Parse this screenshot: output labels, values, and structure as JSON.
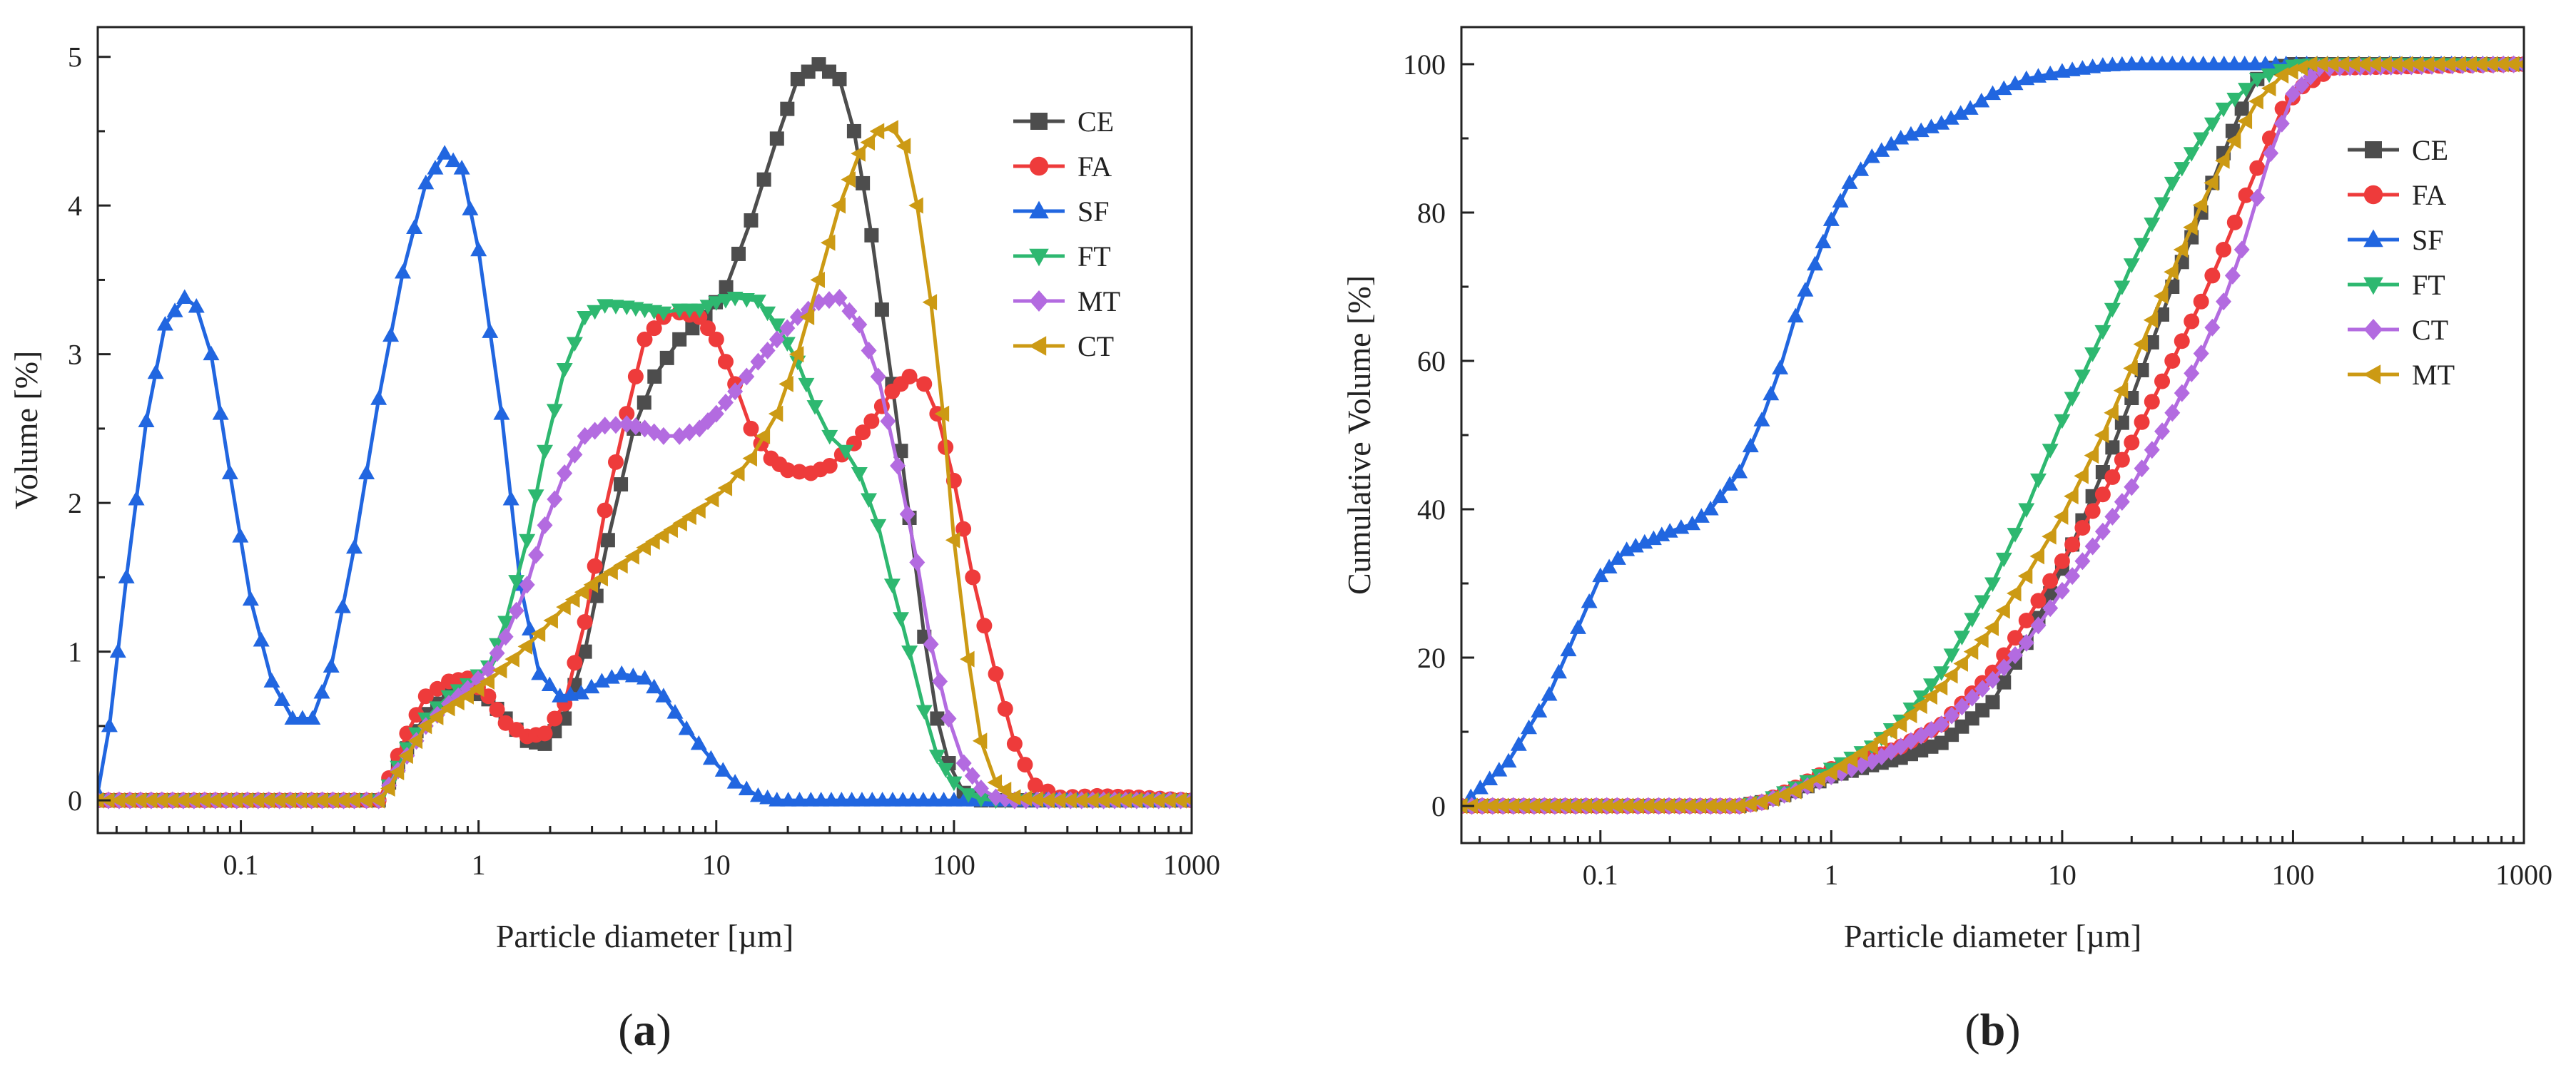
{
  "chart_data": [
    {
      "panel_label": {
        "open": "(",
        "letter": "a",
        "close": ")"
      },
      "type": "line",
      "xscale": "log",
      "xlim": [
        0.025,
        1000
      ],
      "ylim": [
        -0.22,
        5.2
      ],
      "xlabel": "Particle diameter [µm]",
      "ylabel": "Volume [%]",
      "x_ticks": [
        0.1,
        1,
        10,
        100,
        1000
      ],
      "x_tick_labels": [
        "0.1",
        "1",
        "10",
        "100",
        "1000"
      ],
      "y_ticks": [
        0,
        1,
        2,
        3,
        4,
        5
      ],
      "y_tick_labels": [
        "0",
        "1",
        "2",
        "3",
        "4",
        "5"
      ],
      "legend_position": "top-right",
      "grid": false,
      "series": [
        {
          "name": "CE",
          "marker": "square",
          "color": "#4d4d4d",
          "x": [
            0.025,
            0.3,
            0.38,
            0.42,
            0.5,
            0.6,
            0.75,
            0.9,
            1.1,
            1.3,
            1.6,
            1.9,
            2.3,
            2.8,
            3.5,
            4.5,
            5.5,
            7,
            9,
            11,
            14,
            18,
            22,
            27,
            33,
            38,
            45,
            55,
            65,
            75,
            85,
            95,
            110,
            130,
            150,
            200,
            1000
          ],
          "y": [
            0,
            0,
            0,
            0.12,
            0.35,
            0.58,
            0.72,
            0.75,
            0.68,
            0.55,
            0.4,
            0.38,
            0.55,
            1.0,
            1.75,
            2.5,
            2.85,
            3.1,
            3.25,
            3.45,
            3.9,
            4.45,
            4.85,
            4.95,
            4.85,
            4.5,
            3.8,
            2.8,
            1.9,
            1.1,
            0.55,
            0.25,
            0.05,
            0,
            0,
            0,
            0
          ]
        },
        {
          "name": "FA",
          "marker": "circle",
          "color": "#ee3b3b",
          "x": [
            0.025,
            0.3,
            0.38,
            0.42,
            0.5,
            0.6,
            0.75,
            0.9,
            1.1,
            1.3,
            1.6,
            1.9,
            2.3,
            2.8,
            3.4,
            4.2,
            5,
            6,
            7,
            8.5,
            10,
            12,
            14,
            17,
            20,
            25,
            30,
            38,
            45,
            55,
            65,
            75,
            85,
            100,
            120,
            150,
            180,
            220,
            280,
            400,
            600,
            1000
          ],
          "y": [
            0,
            0,
            0,
            0.15,
            0.45,
            0.7,
            0.8,
            0.82,
            0.7,
            0.52,
            0.43,
            0.45,
            0.65,
            1.2,
            1.95,
            2.6,
            3.1,
            3.25,
            3.28,
            3.25,
            3.1,
            2.8,
            2.5,
            2.3,
            2.22,
            2.2,
            2.25,
            2.4,
            2.55,
            2.75,
            2.85,
            2.8,
            2.6,
            2.15,
            1.5,
            0.85,
            0.38,
            0.1,
            0.02,
            0.03,
            0.02,
            0
          ]
        },
        {
          "name": "SF",
          "marker": "triangle-up",
          "color": "#2166e0",
          "x": [
            0.025,
            0.028,
            0.033,
            0.04,
            0.048,
            0.058,
            0.065,
            0.075,
            0.09,
            0.11,
            0.135,
            0.165,
            0.2,
            0.24,
            0.3,
            0.38,
            0.48,
            0.6,
            0.72,
            0.85,
            1.0,
            1.25,
            1.5,
            1.8,
            2.2,
            2.7,
            3.3,
            4.0,
            5.0,
            6.0,
            7.5,
            9.5,
            12,
            15,
            18,
            25,
            50,
            100,
            200,
            1000
          ],
          "y": [
            0.05,
            0.5,
            1.5,
            2.55,
            3.2,
            3.38,
            3.32,
            3.0,
            2.2,
            1.35,
            0.8,
            0.55,
            0.55,
            0.9,
            1.7,
            2.7,
            3.55,
            4.15,
            4.35,
            4.25,
            3.7,
            2.6,
            1.45,
            0.85,
            0.7,
            0.72,
            0.8,
            0.85,
            0.82,
            0.7,
            0.48,
            0.28,
            0.12,
            0.03,
            0,
            0,
            0,
            0,
            0,
            0
          ]
        },
        {
          "name": "FT",
          "marker": "triangle-down",
          "color": "#2eb870",
          "x": [
            0.025,
            0.3,
            0.38,
            0.42,
            0.5,
            0.6,
            0.75,
            0.9,
            1.1,
            1.3,
            1.6,
            1.9,
            2.3,
            2.8,
            3.4,
            4.2,
            5,
            6,
            7,
            8.5,
            10,
            12,
            15,
            18,
            22,
            26,
            30,
            35,
            40,
            48,
            55,
            65,
            75,
            85,
            100,
            115,
            130,
            150,
            180,
            250,
            1000
          ],
          "y": [
            0,
            0,
            0,
            0.1,
            0.35,
            0.55,
            0.7,
            0.78,
            0.9,
            1.2,
            1.75,
            2.35,
            2.9,
            3.25,
            3.33,
            3.32,
            3.3,
            3.28,
            3.3,
            3.3,
            3.35,
            3.38,
            3.36,
            3.2,
            2.95,
            2.65,
            2.45,
            2.35,
            2.2,
            1.85,
            1.45,
            1.0,
            0.6,
            0.3,
            0.12,
            0.04,
            0.01,
            0,
            0,
            0,
            0
          ]
        },
        {
          "name": "MT",
          "marker": "diamond",
          "color": "#b36be0",
          "x": [
            0.025,
            0.3,
            0.38,
            0.42,
            0.5,
            0.6,
            0.75,
            0.9,
            1.1,
            1.3,
            1.6,
            1.9,
            2.3,
            2.8,
            3.4,
            4.2,
            5,
            6,
            7,
            8.5,
            10,
            12,
            15,
            18,
            22,
            27,
            33,
            40,
            48,
            58,
            70,
            80,
            95,
            110,
            130,
            150,
            180,
            250,
            1000
          ],
          "y": [
            0,
            0,
            0,
            0.1,
            0.3,
            0.5,
            0.65,
            0.75,
            0.88,
            1.1,
            1.45,
            1.85,
            2.2,
            2.45,
            2.52,
            2.53,
            2.5,
            2.45,
            2.45,
            2.5,
            2.6,
            2.75,
            2.95,
            3.1,
            3.25,
            3.35,
            3.38,
            3.2,
            2.85,
            2.25,
            1.6,
            1.05,
            0.55,
            0.25,
            0.08,
            0.02,
            0,
            0,
            0
          ]
        },
        {
          "name": "CT",
          "marker": "triangle-left",
          "color": "#cc9a14",
          "x": [
            0.025,
            0.3,
            0.38,
            0.42,
            0.5,
            0.6,
            0.75,
            0.9,
            1.1,
            1.4,
            1.8,
            2.3,
            3,
            4,
            5,
            6.5,
            8.5,
            11,
            14,
            18,
            22,
            27,
            33,
            40,
            48,
            55,
            62,
            70,
            80,
            90,
            100,
            115,
            130,
            150,
            180,
            250,
            1000
          ],
          "y": [
            0,
            0,
            0,
            0.08,
            0.3,
            0.5,
            0.62,
            0.7,
            0.8,
            0.95,
            1.12,
            1.3,
            1.45,
            1.58,
            1.7,
            1.82,
            1.95,
            2.1,
            2.3,
            2.6,
            3.0,
            3.5,
            4.0,
            4.35,
            4.5,
            4.52,
            4.4,
            4.0,
            3.35,
            2.6,
            1.75,
            0.95,
            0.4,
            0.12,
            0.02,
            0,
            0
          ]
        }
      ]
    },
    {
      "panel_label": {
        "open": "(",
        "letter": "b",
        "close": ")"
      },
      "type": "line",
      "xscale": "log",
      "xlim": [
        0.025,
        1000
      ],
      "ylim": [
        -5,
        105
      ],
      "xlabel": "Particle diameter [µm]",
      "ylabel": "Cumulative Volume [%]",
      "x_ticks": [
        0.1,
        1,
        10,
        100,
        1000
      ],
      "x_tick_labels": [
        "0.1",
        "1",
        "10",
        "100",
        "1000"
      ],
      "y_ticks": [
        0,
        20,
        40,
        60,
        80,
        100
      ],
      "y_tick_labels": [
        "0",
        "20",
        "40",
        "60",
        "80",
        "100"
      ],
      "legend_position": "right",
      "grid": false,
      "series": [
        {
          "name": "CE",
          "marker": "square",
          "color": "#4d4d4d",
          "x": [
            0.025,
            0.3,
            0.4,
            0.5,
            0.7,
            1.0,
            1.5,
            2.0,
            3.0,
            5.0,
            7.0,
            10,
            15,
            20,
            30,
            40,
            50,
            60,
            70,
            80,
            100,
            1000
          ],
          "y": [
            0,
            0,
            0,
            0.5,
            2,
            4,
            5.5,
            6.5,
            8.5,
            14,
            22,
            32,
            45,
            55,
            70,
            80,
            88,
            94,
            98,
            99.5,
            100,
            100
          ]
        },
        {
          "name": "FA",
          "marker": "circle",
          "color": "#ee3b3b",
          "x": [
            0.025,
            0.3,
            0.4,
            0.5,
            0.7,
            1.0,
            1.5,
            2.0,
            3.0,
            5.0,
            7.0,
            10,
            15,
            20,
            30,
            40,
            50,
            70,
            90,
            110,
            150,
            1000
          ],
          "y": [
            0,
            0,
            0,
            0.5,
            2.5,
            5,
            6.5,
            8,
            11,
            18,
            25,
            33,
            42,
            49,
            60,
            68,
            75,
            86,
            94,
            97,
            99.5,
            100
          ]
        },
        {
          "name": "SF",
          "marker": "triangle-up",
          "color": "#2166e0",
          "x": [
            0.025,
            0.04,
            0.06,
            0.08,
            0.1,
            0.13,
            0.17,
            0.2,
            0.25,
            0.3,
            0.4,
            0.5,
            0.6,
            0.7,
            0.85,
            1.0,
            1.2,
            1.5,
            2.0,
            3.0,
            4.0,
            5.0,
            7.0,
            10,
            15,
            20,
            30,
            1000
          ],
          "y": [
            0,
            6,
            15,
            24,
            31,
            34.5,
            36,
            37,
            38,
            40,
            45,
            52,
            59,
            66,
            73,
            79,
            84,
            87.5,
            90,
            92,
            94,
            96,
            98,
            99,
            99.8,
            100,
            100,
            100
          ]
        },
        {
          "name": "FT",
          "marker": "triangle-down",
          "color": "#2eb870",
          "x": [
            0.025,
            0.3,
            0.4,
            0.5,
            0.7,
            1.0,
            1.5,
            2.0,
            3.0,
            5.0,
            7.0,
            10,
            15,
            20,
            30,
            40,
            50,
            70,
            100,
            130,
            1000
          ],
          "y": [
            0,
            0,
            0,
            0.5,
            2.5,
            5,
            8,
            11.5,
            18,
            30,
            40,
            52,
            64,
            73,
            84,
            90,
            94,
            98,
            99.8,
            100,
            100
          ]
        },
        {
          "name": "CT",
          "marker": "diamond",
          "color": "#b36be0",
          "x": [
            0.025,
            0.3,
            0.4,
            0.5,
            0.7,
            1.0,
            1.5,
            2.0,
            3.0,
            5.0,
            7.0,
            10,
            15,
            20,
            30,
            40,
            50,
            60,
            70,
            80,
            100,
            130,
            1000
          ],
          "y": [
            0,
            0,
            0,
            0.5,
            2,
            4,
            6,
            8,
            11,
            17,
            22,
            29,
            37,
            43,
            53,
            61,
            68,
            75,
            82,
            88,
            96,
            99.5,
            100
          ]
        },
        {
          "name": "MT",
          "marker": "triangle-left",
          "color": "#cc9a14",
          "x": [
            0.025,
            0.3,
            0.4,
            0.5,
            0.7,
            1.0,
            1.5,
            2.0,
            3.0,
            5.0,
            7.0,
            10,
            15,
            20,
            30,
            40,
            50,
            70,
            90,
            120,
            1000
          ],
          "y": [
            0,
            0,
            0,
            0.5,
            2,
            4.5,
            8,
            11,
            16,
            24,
            31,
            39,
            50,
            59,
            72,
            81,
            87,
            95,
            98.5,
            100,
            100
          ]
        }
      ]
    }
  ]
}
